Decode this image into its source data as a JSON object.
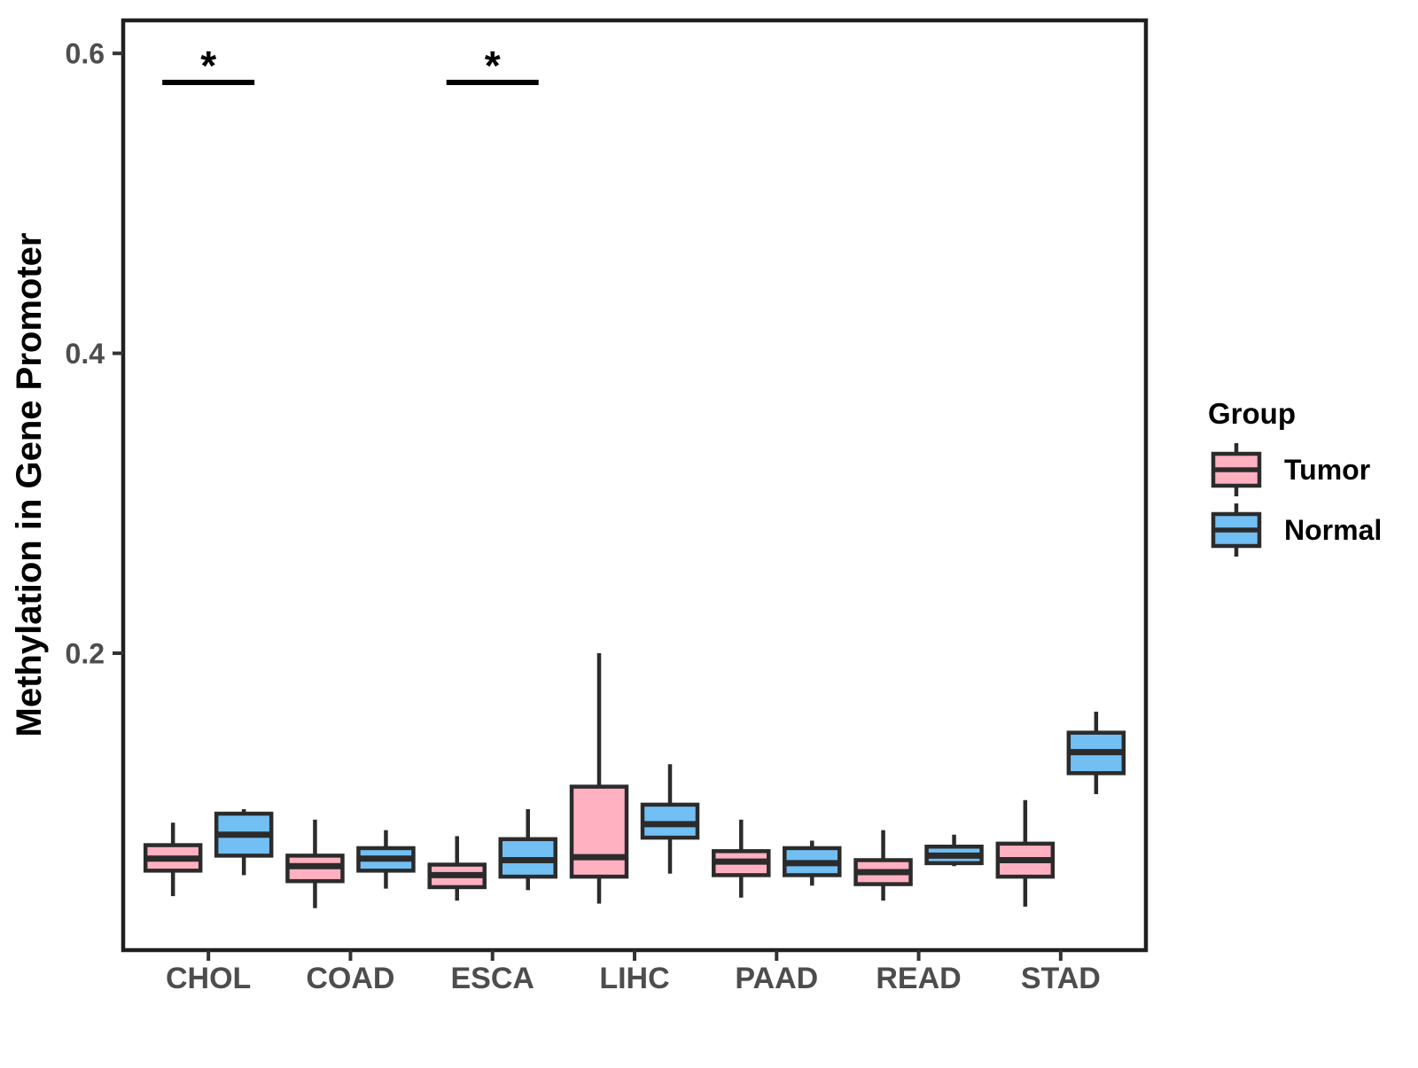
{
  "chart_data": {
    "type": "boxplot",
    "title": "",
    "xlabel": "",
    "ylabel": "Methylation in Gene Promoter",
    "categories": [
      "CHOL",
      "COAD",
      "ESCA",
      "LIHC",
      "PAAD",
      "READ",
      "STAD"
    ],
    "y_ticks": [
      {
        "value": 0.2,
        "label": "0.2"
      },
      {
        "value": 0.4,
        "label": "0.4"
      },
      {
        "value": 0.6,
        "label": "0.6"
      }
    ],
    "ylim": [
      0.002,
      0.622
    ],
    "grid": false,
    "legend": {
      "title": "Group",
      "position": "right",
      "entries": [
        {
          "label": "Tumor",
          "color": "#FFB1C1"
        },
        {
          "label": "Normal",
          "color": "#72BFF4"
        }
      ]
    },
    "series": [
      {
        "name": "Tumor",
        "color": "#FFB1C1",
        "boxes": [
          {
            "category": "CHOL",
            "low": 0.038,
            "q1": 0.055,
            "median": 0.063,
            "q3": 0.072,
            "high": 0.087
          },
          {
            "category": "COAD",
            "low": 0.03,
            "q1": 0.048,
            "median": 0.058,
            "q3": 0.065,
            "high": 0.089
          },
          {
            "category": "ESCA",
            "low": 0.035,
            "q1": 0.044,
            "median": 0.052,
            "q3": 0.059,
            "high": 0.078
          },
          {
            "category": "LIHC",
            "low": 0.033,
            "q1": 0.051,
            "median": 0.064,
            "q3": 0.111,
            "high": 0.2
          },
          {
            "category": "PAAD",
            "low": 0.037,
            "q1": 0.052,
            "median": 0.061,
            "q3": 0.068,
            "high": 0.089
          },
          {
            "category": "READ",
            "low": 0.035,
            "q1": 0.046,
            "median": 0.054,
            "q3": 0.062,
            "high": 0.082
          },
          {
            "category": "STAD",
            "low": 0.031,
            "q1": 0.051,
            "median": 0.062,
            "q3": 0.073,
            "high": 0.102
          }
        ]
      },
      {
        "name": "Normal",
        "color": "#72BFF4",
        "boxes": [
          {
            "category": "CHOL",
            "low": 0.052,
            "q1": 0.065,
            "median": 0.079,
            "q3": 0.093,
            "high": 0.096
          },
          {
            "category": "COAD",
            "low": 0.043,
            "q1": 0.055,
            "median": 0.063,
            "q3": 0.07,
            "high": 0.082
          },
          {
            "category": "ESCA",
            "low": 0.042,
            "q1": 0.051,
            "median": 0.062,
            "q3": 0.076,
            "high": 0.096
          },
          {
            "category": "LIHC",
            "low": 0.053,
            "q1": 0.077,
            "median": 0.086,
            "q3": 0.099,
            "high": 0.126
          },
          {
            "category": "PAAD",
            "low": 0.045,
            "q1": 0.052,
            "median": 0.06,
            "q3": 0.07,
            "high": 0.075
          },
          {
            "category": "READ",
            "low": 0.058,
            "q1": 0.06,
            "median": 0.065,
            "q3": 0.071,
            "high": 0.079
          },
          {
            "category": "STAD",
            "low": 0.106,
            "q1": 0.12,
            "median": 0.134,
            "q3": 0.147,
            "high": 0.161
          }
        ]
      }
    ],
    "significance": [
      {
        "category": "CHOL",
        "label": "*"
      },
      {
        "category": "ESCA",
        "label": "*"
      }
    ],
    "colors": {
      "panel_border": "#1F1F1F",
      "box_stroke": "#2B2B2B",
      "tick": "#333333",
      "tick_label": "#4D4D4D",
      "annotation": "#000000",
      "background": "#FFFFFF"
    }
  }
}
